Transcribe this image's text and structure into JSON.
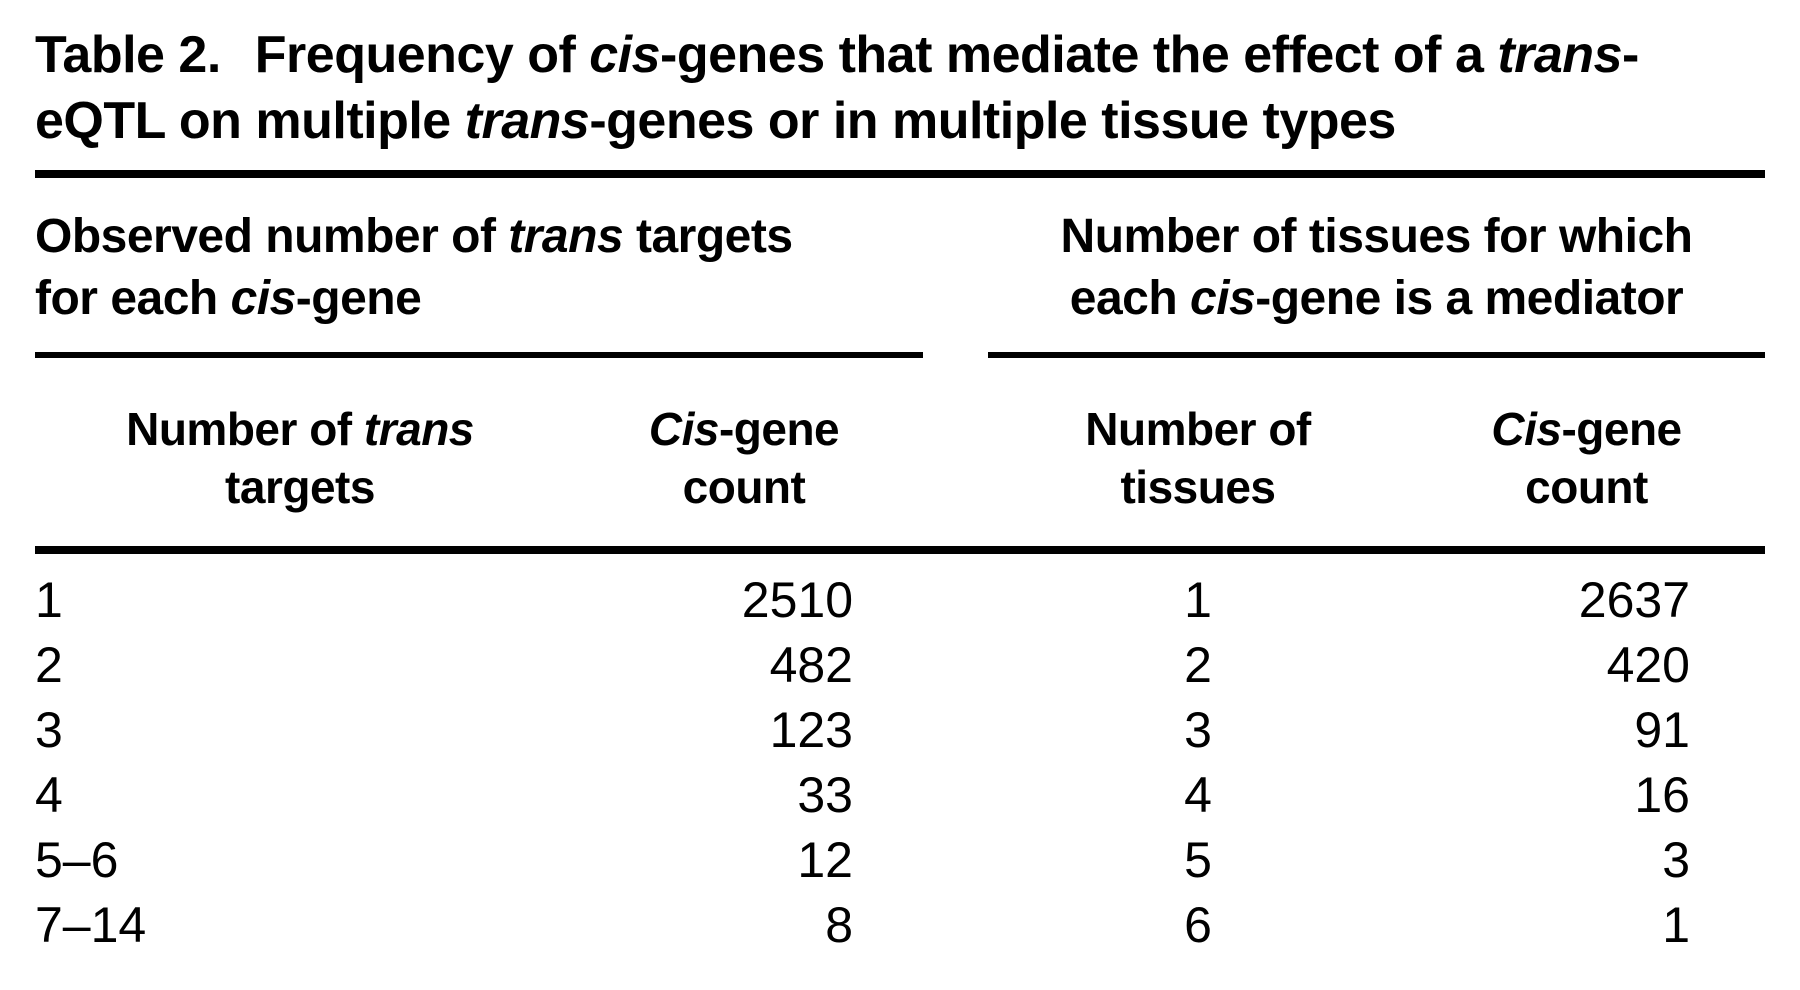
{
  "table": {
    "caption": {
      "label": "Table 2.",
      "l1a": "Frequency of ",
      "l1b": "cis",
      "l1c": "-genes that mediate the effect of a ",
      "l1d": "trans",
      "l1e": "-",
      "l2a": "eQTL on multiple ",
      "l2b": "trans",
      "l2c": "-genes or in multiple tissue types"
    },
    "groups": {
      "left": {
        "l1a": "Observed number of ",
        "l1b": "trans",
        "l1c": " targets",
        "l2a": "for each ",
        "l2b": "cis",
        "l2c": "-gene"
      },
      "right": {
        "l1": "Number of tissues for which",
        "l2a": "each ",
        "l2b": "cis",
        "l2c": "-gene is a mediator"
      }
    },
    "columns": {
      "c1": {
        "l1a": "Number of ",
        "l1b": "trans",
        "l2": "targets"
      },
      "c2": {
        "l1a": "Cis",
        "l1b": "-gene",
        "l2": "count"
      },
      "c3": {
        "l1": "Number of",
        "l2": "tissues"
      },
      "c4": {
        "l1a": "Cis",
        "l1b": "-gene",
        "l2": "count"
      }
    },
    "rows": [
      [
        "1",
        "2510",
        "1",
        "2637"
      ],
      [
        "2",
        "482",
        "2",
        "420"
      ],
      [
        "3",
        "123",
        "3",
        "91"
      ],
      [
        "4",
        "33",
        "4",
        "16"
      ],
      [
        "5–6",
        "12",
        "5",
        "3"
      ],
      [
        "7–14",
        "8",
        "6",
        "1"
      ]
    ],
    "colors": {
      "text": "#000000",
      "background": "#ffffff",
      "rule": "#000000"
    }
  }
}
